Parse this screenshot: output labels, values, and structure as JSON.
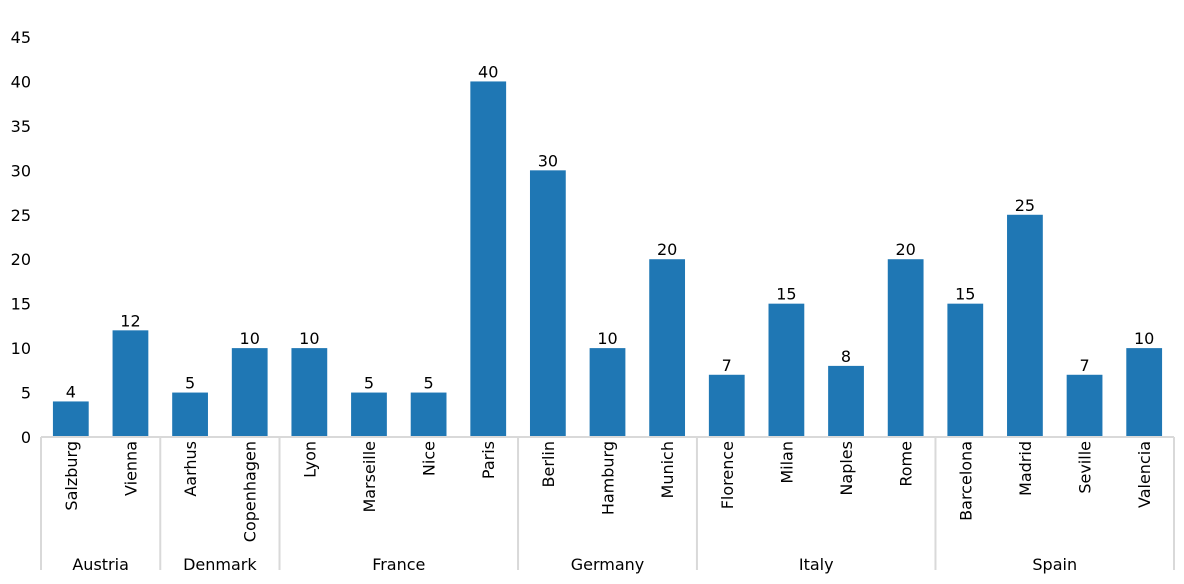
{
  "chart_data": {
    "type": "bar",
    "title": "",
    "xlabel": "",
    "ylabel": "",
    "ylim": [
      0,
      45
    ],
    "yticks": [
      0,
      5,
      10,
      15,
      20,
      25,
      30,
      35,
      40,
      45
    ],
    "grid": false,
    "bar_color": "#1f77b4",
    "groups": [
      {
        "name": "Austria",
        "categories": [
          "Salzburg",
          "Vienna"
        ],
        "values": [
          4,
          12
        ]
      },
      {
        "name": "Denmark",
        "categories": [
          "Aarhus",
          "Copenhagen"
        ],
        "values": [
          5,
          10
        ]
      },
      {
        "name": "France",
        "categories": [
          "Lyon",
          "Marseille",
          "Nice",
          "Paris"
        ],
        "values": [
          10,
          5,
          5,
          40
        ]
      },
      {
        "name": "Germany",
        "categories": [
          "Berlin",
          "Hamburg",
          "Munich"
        ],
        "values": [
          30,
          10,
          20
        ]
      },
      {
        "name": "Italy",
        "categories": [
          "Florence",
          "Milan",
          "Naples",
          "Rome"
        ],
        "values": [
          7,
          15,
          8,
          20
        ]
      },
      {
        "name": "Spain",
        "categories": [
          "Barcelona",
          "Madrid",
          "Seville",
          "Valencia"
        ],
        "values": [
          15,
          25,
          7,
          10
        ]
      }
    ]
  }
}
